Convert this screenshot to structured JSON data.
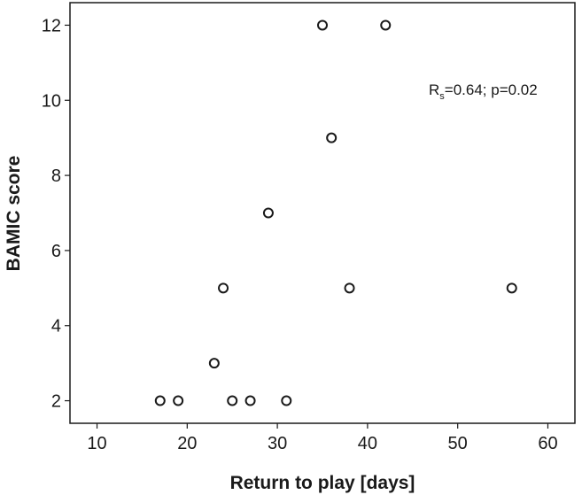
{
  "chart_data": {
    "type": "scatter",
    "title": "",
    "xlabel": "Return to play [days]",
    "ylabel": "BAMIC score",
    "xlim": [
      7,
      63
    ],
    "ylim": [
      1.4,
      12.6
    ],
    "x_ticks": [
      10,
      20,
      30,
      40,
      50,
      60
    ],
    "y_ticks": [
      2,
      4,
      6,
      8,
      10,
      12
    ],
    "grid": false,
    "legend": "none",
    "marker": "open-circle",
    "points": [
      {
        "x": 17,
        "y": 2
      },
      {
        "x": 19,
        "y": 2
      },
      {
        "x": 23,
        "y": 3
      },
      {
        "x": 24,
        "y": 5
      },
      {
        "x": 25,
        "y": 2
      },
      {
        "x": 27,
        "y": 2
      },
      {
        "x": 29,
        "y": 7
      },
      {
        "x": 31,
        "y": 2
      },
      {
        "x": 35,
        "y": 12
      },
      {
        "x": 36,
        "y": 9
      },
      {
        "x": 38,
        "y": 5
      },
      {
        "x": 42,
        "y": 12
      },
      {
        "x": 56,
        "y": 5
      }
    ],
    "annotation": {
      "prefix": "R",
      "subscript": "s",
      "text": "=0.64; p=0.02"
    }
  }
}
